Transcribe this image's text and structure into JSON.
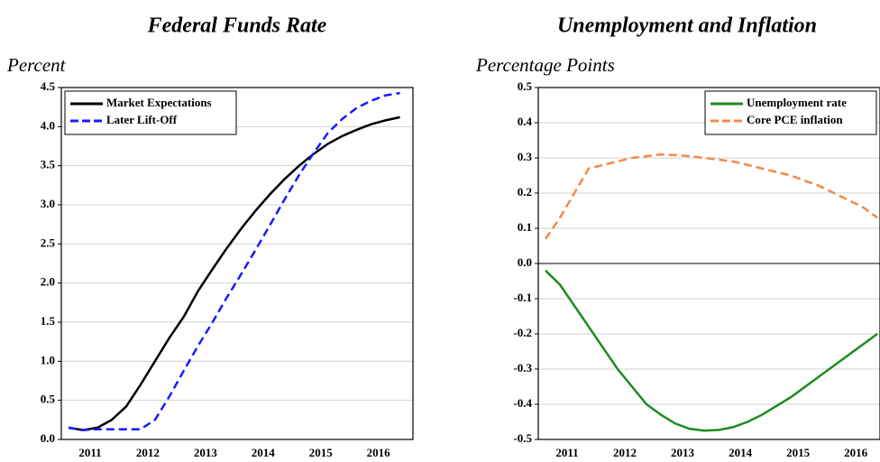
{
  "chart_data": [
    {
      "type": "line",
      "title": "Federal Funds Rate",
      "y_label": "Percent",
      "x": [
        2011.125,
        2011.375,
        2011.625,
        2011.875,
        2012.125,
        2012.375,
        2012.625,
        2012.875,
        2013.125,
        2013.375,
        2013.625,
        2013.875,
        2014.125,
        2014.375,
        2014.625,
        2014.875,
        2015.125,
        2015.375,
        2015.625,
        2015.875,
        2016.125,
        2016.375,
        2016.625,
        2016.875
      ],
      "xlim": [
        2011,
        2017.1
      ],
      "xticks": [
        {
          "value": 2011.5,
          "label": "2011"
        },
        {
          "value": 2012.5,
          "label": "2012"
        },
        {
          "value": 2013.5,
          "label": "2013"
        },
        {
          "value": 2014.5,
          "label": "2014"
        },
        {
          "value": 2015.5,
          "label": "2015"
        },
        {
          "value": 2016.5,
          "label": "2016"
        }
      ],
      "ylim": [
        0,
        4.5
      ],
      "yticks": [
        {
          "value": 0,
          "label": "0.0"
        },
        0.5,
        {
          "value": 1,
          "label": "1.0"
        },
        1.5,
        {
          "value": 2,
          "label": "2.0"
        },
        2.5,
        {
          "value": 3,
          "label": "3.0"
        },
        3.5,
        {
          "value": 4,
          "label": "4.0"
        },
        4.5
      ],
      "grid": true,
      "legend": "upper left",
      "series": [
        {
          "name": "Market Expectations",
          "color": "#000000",
          "dash": "solid",
          "values": [
            0.15,
            0.12,
            0.15,
            0.25,
            0.42,
            0.7,
            1.0,
            1.3,
            1.57,
            1.9,
            2.18,
            2.45,
            2.7,
            2.93,
            3.14,
            3.33,
            3.5,
            3.65,
            3.78,
            3.88,
            3.96,
            4.03,
            4.08,
            4.12
          ]
        },
        {
          "name": "Later Lift-Off",
          "color": "#1a1aff",
          "dash": "dashed",
          "values": [
            0.15,
            0.12,
            0.13,
            0.13,
            0.13,
            0.13,
            0.25,
            0.55,
            0.88,
            1.2,
            1.5,
            1.82,
            2.12,
            2.43,
            2.75,
            3.07,
            3.38,
            3.66,
            3.92,
            4.1,
            4.24,
            4.33,
            4.4,
            4.43
          ]
        }
      ]
    },
    {
      "type": "line",
      "title": "Unemployment and Inflation",
      "y_label": "Percentage Points",
      "x": [
        2011.125,
        2011.375,
        2011.625,
        2011.875,
        2012.125,
        2012.375,
        2012.625,
        2012.875,
        2013.125,
        2013.375,
        2013.625,
        2013.875,
        2014.125,
        2014.375,
        2014.625,
        2014.875,
        2015.125,
        2015.375,
        2015.625,
        2015.875,
        2016.125,
        2016.375,
        2016.625,
        2016.875
      ],
      "xlim": [
        2011,
        2016.92
      ],
      "xticks": [
        {
          "value": 2011.5,
          "label": "2011"
        },
        {
          "value": 2012.5,
          "label": "2012"
        },
        {
          "value": 2013.5,
          "label": "2013"
        },
        {
          "value": 2014.5,
          "label": "2014"
        },
        {
          "value": 2015.5,
          "label": "2015"
        },
        {
          "value": 2016.5,
          "label": "2016"
        }
      ],
      "ylim": [
        -0.5,
        0.5
      ],
      "yticks": [
        -0.5,
        -0.4,
        -0.3,
        -0.2,
        -0.1,
        {
          "value": 0,
          "label": "0.0"
        },
        0.1,
        0.2,
        0.3,
        0.4,
        0.5
      ],
      "grid": true,
      "zero_line": true,
      "legend": "upper right",
      "series": [
        {
          "name": "Unemployment rate",
          "color": "#1e8a1e",
          "dash": "solid",
          "values": [
            -0.02,
            -0.06,
            -0.12,
            -0.18,
            -0.24,
            -0.3,
            -0.35,
            -0.4,
            -0.43,
            -0.455,
            -0.47,
            -0.475,
            -0.473,
            -0.465,
            -0.45,
            -0.43,
            -0.405,
            -0.38,
            -0.35,
            -0.32,
            -0.29,
            -0.26,
            -0.23,
            -0.2
          ]
        },
        {
          "name": "Core PCE inflation",
          "color": "#f4884a",
          "dash": "dashed",
          "values": [
            0.07,
            0.13,
            0.2,
            0.27,
            0.28,
            0.29,
            0.3,
            0.305,
            0.31,
            0.308,
            0.305,
            0.3,
            0.295,
            0.29,
            0.28,
            0.27,
            0.26,
            0.25,
            0.235,
            0.22,
            0.2,
            0.18,
            0.16,
            0.13
          ]
        }
      ]
    }
  ]
}
